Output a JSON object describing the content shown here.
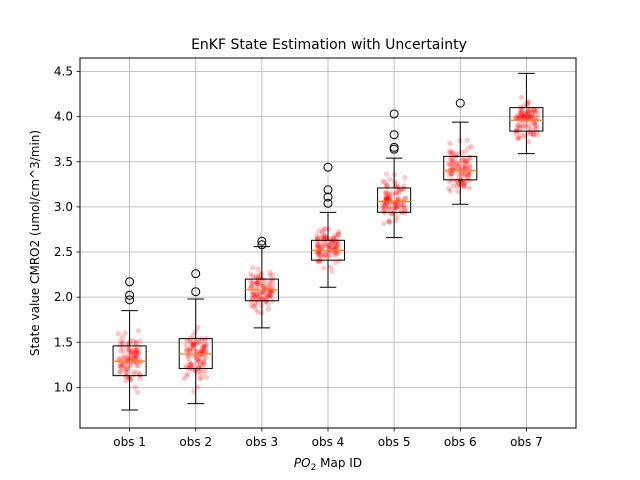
{
  "chart_data": {
    "type": "box",
    "title": "EnKF State Estimation with Uncertainty",
    "xlabel_main": "PO",
    "xlabel_sub": "2",
    "xlabel_rest": " Map ID",
    "ylabel": "State value CMRO2 (umol/cm^3/min)",
    "ylim": [
      0.55,
      4.65
    ],
    "yticks": [
      "1.0",
      "1.5",
      "2.0",
      "2.5",
      "3.0",
      "3.5",
      "4.0",
      "4.5"
    ],
    "grid": true,
    "categories": [
      "obs 1",
      "obs 2",
      "obs 3",
      "obs 4",
      "obs 5",
      "obs 6",
      "obs 7"
    ],
    "boxes": [
      {
        "whisker_low": 0.75,
        "q1": 1.13,
        "median": 1.29,
        "q3": 1.46,
        "whisker_high": 1.85,
        "outliers": [
          1.97,
          2.02,
          2.17
        ],
        "center": 1.3,
        "spread": 0.22
      },
      {
        "whisker_low": 0.82,
        "q1": 1.21,
        "median": 1.37,
        "q3": 1.54,
        "whisker_high": 1.98,
        "outliers": [
          2.06,
          2.26
        ],
        "center": 1.38,
        "spread": 0.23
      },
      {
        "whisker_low": 1.66,
        "q1": 1.96,
        "median": 2.08,
        "q3": 2.2,
        "whisker_high": 2.56,
        "outliers": [
          2.58,
          2.62
        ],
        "center": 2.08,
        "spread": 0.18
      },
      {
        "whisker_low": 2.11,
        "q1": 2.41,
        "median": 2.52,
        "q3": 2.63,
        "whisker_high": 2.94,
        "outliers": [
          3.04,
          3.11,
          3.19,
          3.44
        ],
        "center": 2.52,
        "spread": 0.17
      },
      {
        "whisker_low": 2.66,
        "q1": 2.94,
        "median": 3.06,
        "q3": 3.21,
        "whisker_high": 3.54,
        "outliers": [
          3.64,
          3.66,
          3.8,
          4.03
        ],
        "center": 3.07,
        "spread": 0.19
      },
      {
        "whisker_low": 3.03,
        "q1": 3.3,
        "median": 3.4,
        "q3": 3.56,
        "whisker_high": 3.94,
        "outliers": [
          4.15
        ],
        "center": 3.42,
        "spread": 0.18
      },
      {
        "whisker_low": 3.59,
        "q1": 3.84,
        "median": 3.96,
        "q3": 4.1,
        "whisker_high": 4.48,
        "outliers": [],
        "center": 3.97,
        "spread": 0.18
      }
    ],
    "points_per_box": 100,
    "colors": {
      "box": "#000000",
      "median": "#ff7f0e",
      "scatter": "#ff0000",
      "grid": "#b0b0b0",
      "outlier_edge": "#000000"
    }
  }
}
